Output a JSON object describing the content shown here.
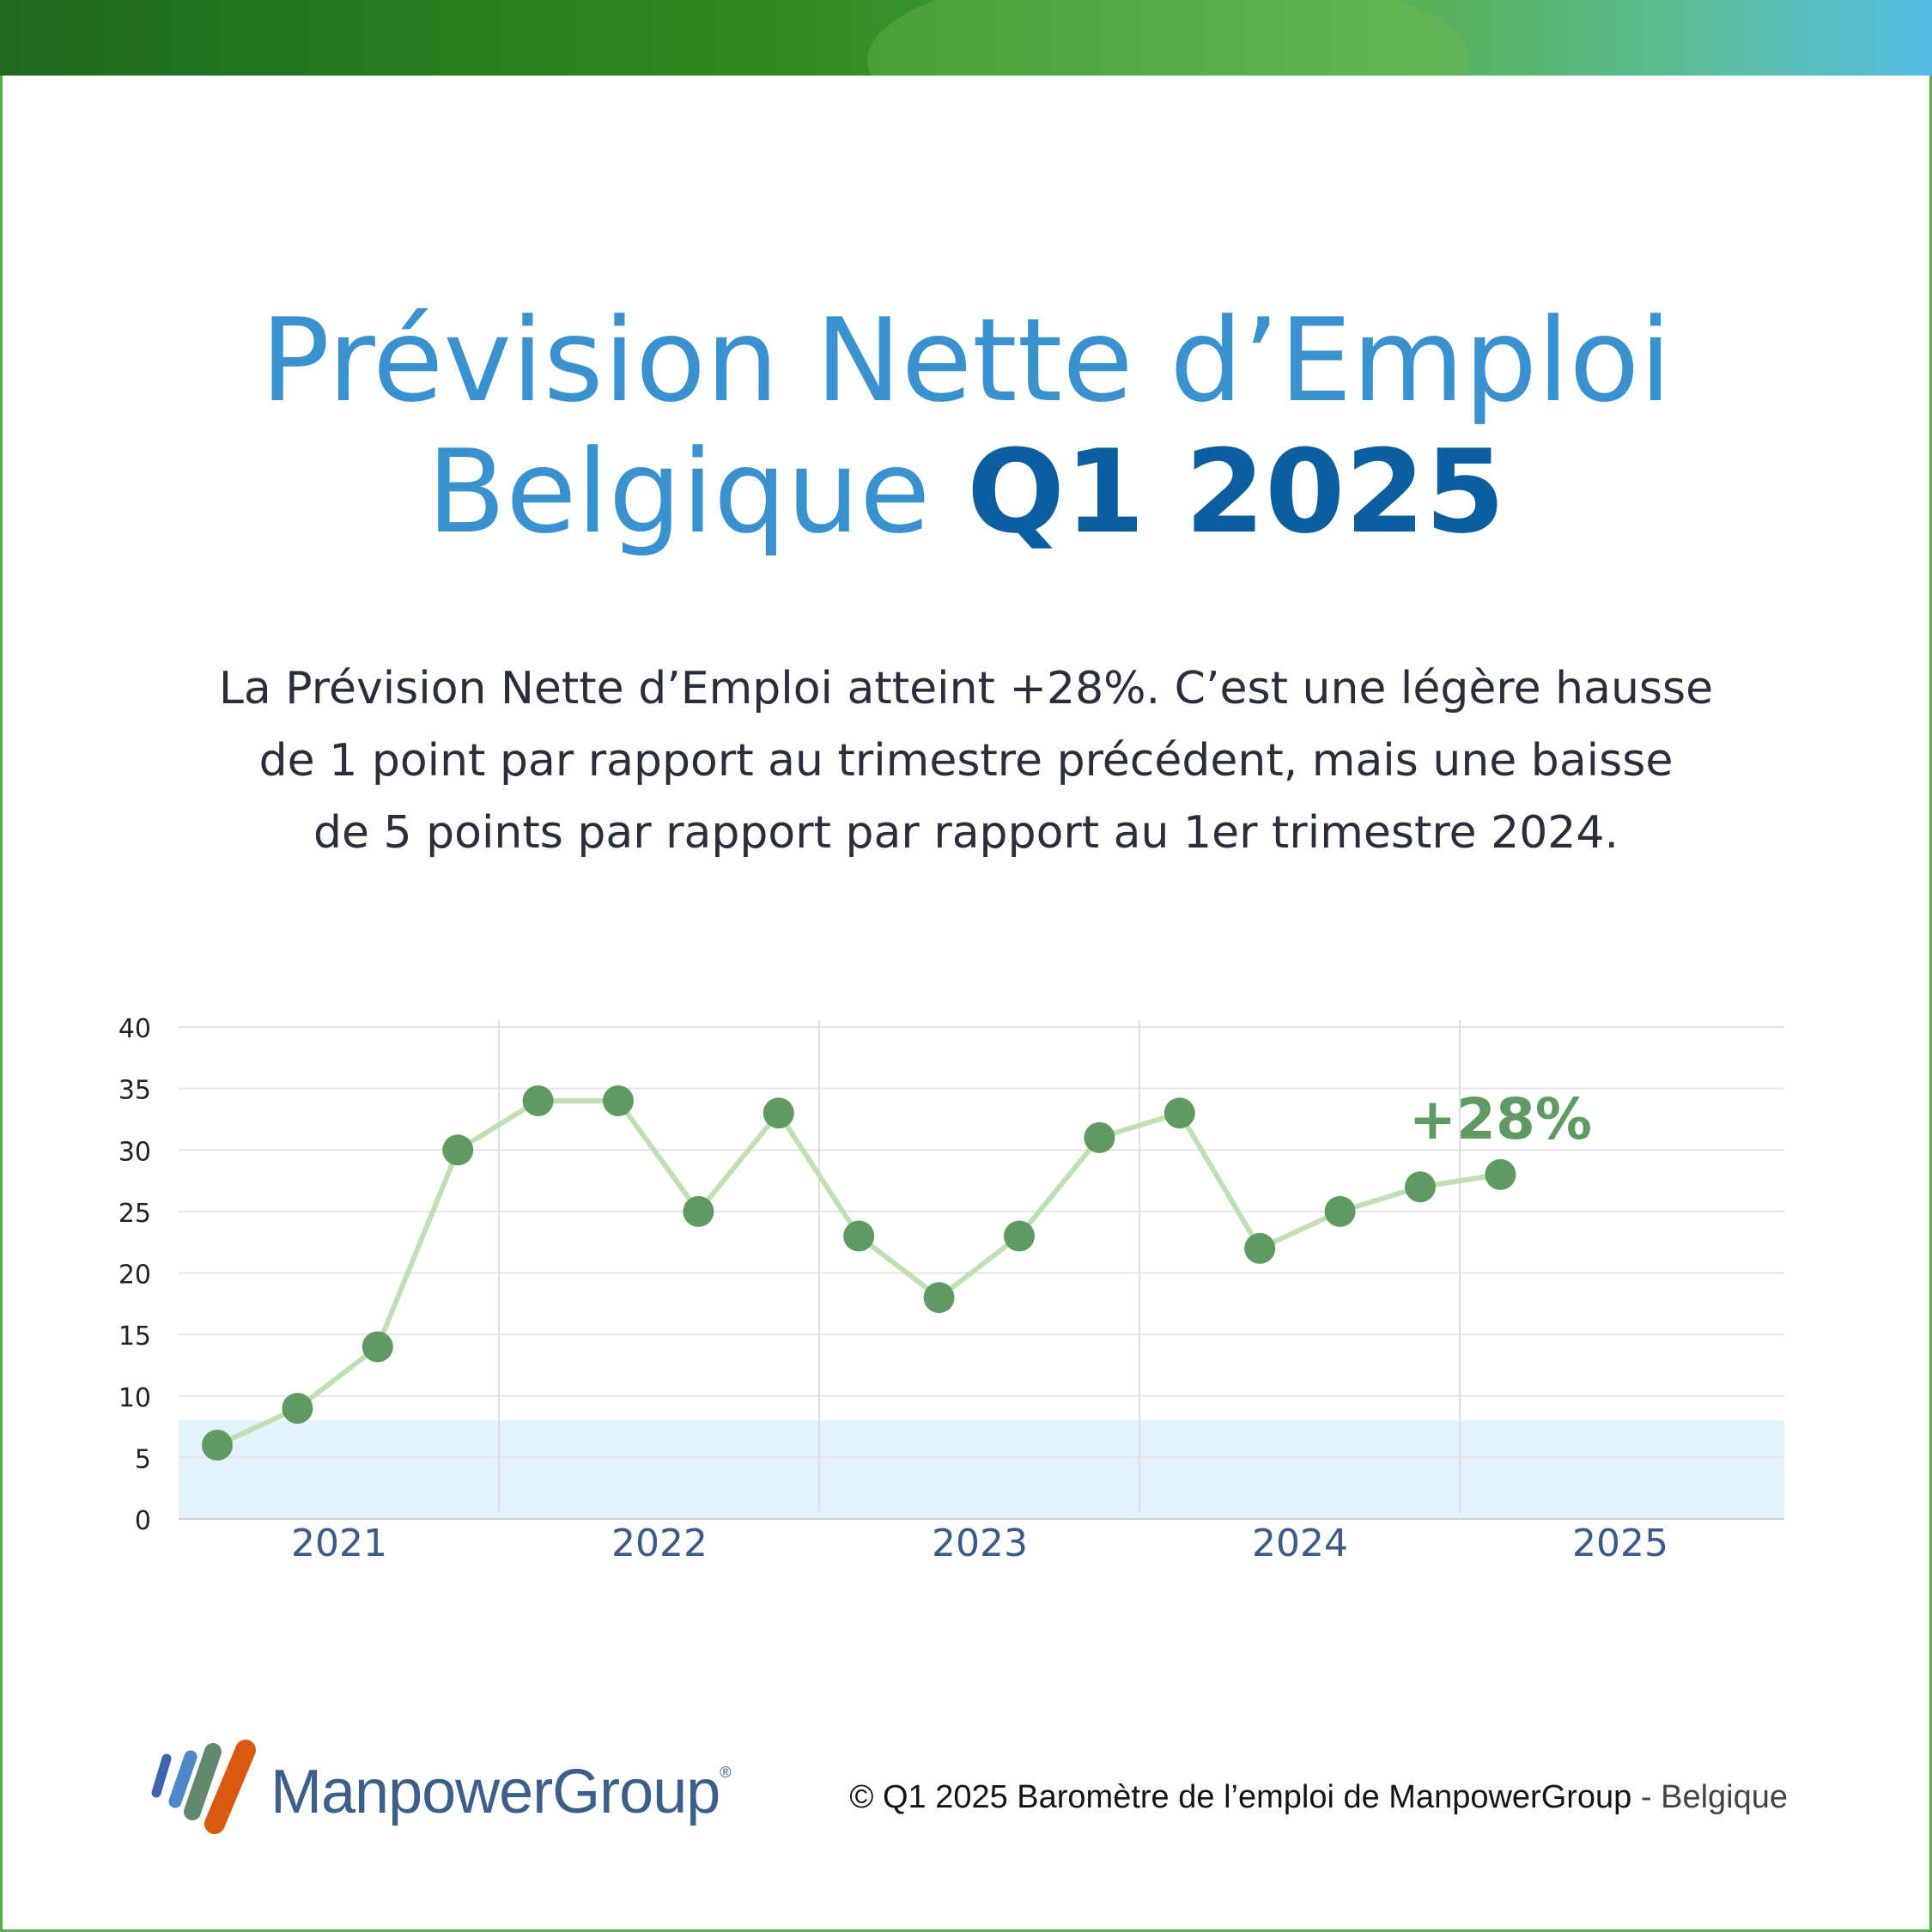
{
  "header": {
    "title_line1": "Prévision Nette d’Emploi",
    "title_line2_prefix": "Belgique",
    "title_line2_emphasis": "Q1 2025"
  },
  "description": {
    "line1": "La Prévision Nette d’Emploi atteint +28%. C’est une légère hausse",
    "line2": "de 1 point par rapport au trimestre précédent, mais une baisse",
    "line3": "de 5 points par rapport par rapport au 1er trimestre 2024."
  },
  "chart_data": {
    "type": "line",
    "x": [
      "2021 Q1",
      "2021 Q2",
      "2021 Q3",
      "2021 Q4",
      "2022 Q1",
      "2022 Q2",
      "2022 Q3",
      "2022 Q4",
      "2023 Q1",
      "2023 Q2",
      "2023 Q3",
      "2023 Q4",
      "2024 Q1",
      "2024 Q2",
      "2024 Q3",
      "2024 Q4",
      "2025 Q1"
    ],
    "series": [
      {
        "values": [
          6,
          9,
          14,
          30,
          34,
          34,
          25,
          33,
          23,
          18,
          23,
          31,
          33,
          22,
          25,
          27,
          28
        ]
      }
    ],
    "year_labels": [
      "2021",
      "2022",
      "2023",
      "2024",
      "2025"
    ],
    "y_ticks": [
      0,
      5,
      10,
      15,
      20,
      25,
      30,
      35,
      40
    ],
    "ylim": [
      0,
      40
    ],
    "shaded_band": [
      0,
      8
    ],
    "annotation": "+28%",
    "grid": true,
    "colors": {
      "line": "#bfe0b3",
      "point": "#5f9a62",
      "band": "#e3f2fb",
      "tick": "#3a5a8a",
      "annotation": "#5f9a62"
    }
  },
  "footer": {
    "brand": "ManpowerGroup",
    "registered": "®",
    "copyright_bold": "© Q1 2025 Baromètre de l’emploi de ManpowerGroup",
    "copyright_light": " - Belgique"
  }
}
